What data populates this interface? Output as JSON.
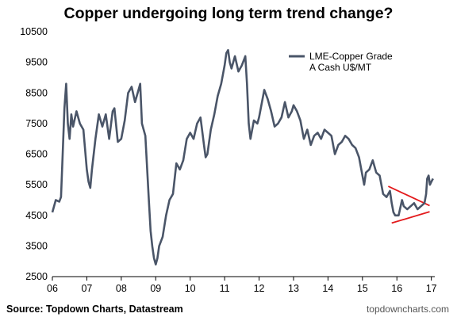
{
  "chart_data": {
    "type": "line",
    "title": "Copper undergoing long term trend change?",
    "xlabel": "",
    "ylabel": "",
    "xlim": [
      2006,
      2017.1
    ],
    "ylim": [
      2500,
      10500
    ],
    "x_ticks": [
      2006,
      2007,
      2008,
      2009,
      2010,
      2011,
      2012,
      2013,
      2014,
      2015,
      2016,
      2017
    ],
    "x_tick_labels": [
      "06",
      "07",
      "08",
      "09",
      "10",
      "11",
      "12",
      "13",
      "14",
      "15",
      "16",
      "17"
    ],
    "y_ticks": [
      2500,
      3500,
      4500,
      5500,
      6500,
      7500,
      8500,
      9500,
      10500
    ],
    "y_tick_labels": [
      "2500",
      "3500",
      "4500",
      "5500",
      "6500",
      "7500",
      "8500",
      "9500",
      "10500"
    ],
    "grid": false,
    "legend": {
      "placement": "top-right"
    },
    "series": [
      {
        "name": "LME-Copper Grade A Cash U$/MT",
        "legend_lines": [
          "LME-Copper Grade",
          "A Cash U$/MT"
        ],
        "color": "#4a5568",
        "points": [
          [
            2006.0,
            4600
          ],
          [
            2006.1,
            5000
          ],
          [
            2006.2,
            4950
          ],
          [
            2006.25,
            5100
          ],
          [
            2006.3,
            6500
          ],
          [
            2006.35,
            8000
          ],
          [
            2006.4,
            8800
          ],
          [
            2006.45,
            7500
          ],
          [
            2006.5,
            7000
          ],
          [
            2006.55,
            7800
          ],
          [
            2006.6,
            7400
          ],
          [
            2006.7,
            7900
          ],
          [
            2006.8,
            7500
          ],
          [
            2006.9,
            7300
          ],
          [
            2007.0,
            6000
          ],
          [
            2007.05,
            5600
          ],
          [
            2007.1,
            5400
          ],
          [
            2007.15,
            6000
          ],
          [
            2007.25,
            7000
          ],
          [
            2007.35,
            7800
          ],
          [
            2007.45,
            7400
          ],
          [
            2007.55,
            7800
          ],
          [
            2007.65,
            7000
          ],
          [
            2007.75,
            7900
          ],
          [
            2007.8,
            8000
          ],
          [
            2007.9,
            6900
          ],
          [
            2008.0,
            7000
          ],
          [
            2008.1,
            7600
          ],
          [
            2008.2,
            8500
          ],
          [
            2008.3,
            8700
          ],
          [
            2008.4,
            8200
          ],
          [
            2008.5,
            8600
          ],
          [
            2008.55,
            8800
          ],
          [
            2008.6,
            7500
          ],
          [
            2008.7,
            7100
          ],
          [
            2008.8,
            5000
          ],
          [
            2008.85,
            4000
          ],
          [
            2008.9,
            3500
          ],
          [
            2008.95,
            3100
          ],
          [
            2009.0,
            2900
          ],
          [
            2009.05,
            3100
          ],
          [
            2009.1,
            3500
          ],
          [
            2009.2,
            3800
          ],
          [
            2009.3,
            4500
          ],
          [
            2009.4,
            5000
          ],
          [
            2009.5,
            5200
          ],
          [
            2009.6,
            6200
          ],
          [
            2009.7,
            6000
          ],
          [
            2009.8,
            6300
          ],
          [
            2009.9,
            7000
          ],
          [
            2010.0,
            7200
          ],
          [
            2010.1,
            7000
          ],
          [
            2010.2,
            7500
          ],
          [
            2010.3,
            7700
          ],
          [
            2010.4,
            6800
          ],
          [
            2010.45,
            6400
          ],
          [
            2010.5,
            6500
          ],
          [
            2010.6,
            7300
          ],
          [
            2010.7,
            7800
          ],
          [
            2010.8,
            8400
          ],
          [
            2010.9,
            8800
          ],
          [
            2011.0,
            9400
          ],
          [
            2011.05,
            9800
          ],
          [
            2011.1,
            9900
          ],
          [
            2011.15,
            9500
          ],
          [
            2011.2,
            9300
          ],
          [
            2011.3,
            9700
          ],
          [
            2011.4,
            9200
          ],
          [
            2011.5,
            9400
          ],
          [
            2011.6,
            9700
          ],
          [
            2011.65,
            8800
          ],
          [
            2011.7,
            7500
          ],
          [
            2011.75,
            7000
          ],
          [
            2011.85,
            7600
          ],
          [
            2011.95,
            7500
          ],
          [
            2012.0,
            7700
          ],
          [
            2012.1,
            8300
          ],
          [
            2012.15,
            8600
          ],
          [
            2012.25,
            8300
          ],
          [
            2012.35,
            7900
          ],
          [
            2012.45,
            7400
          ],
          [
            2012.55,
            7500
          ],
          [
            2012.65,
            7700
          ],
          [
            2012.75,
            8200
          ],
          [
            2012.85,
            7700
          ],
          [
            2012.95,
            7900
          ],
          [
            2013.0,
            8100
          ],
          [
            2013.1,
            7900
          ],
          [
            2013.2,
            7600
          ],
          [
            2013.3,
            7000
          ],
          [
            2013.4,
            7300
          ],
          [
            2013.5,
            6800
          ],
          [
            2013.6,
            7100
          ],
          [
            2013.7,
            7200
          ],
          [
            2013.8,
            7000
          ],
          [
            2013.9,
            7300
          ],
          [
            2014.0,
            7200
          ],
          [
            2014.1,
            7100
          ],
          [
            2014.2,
            6500
          ],
          [
            2014.3,
            6800
          ],
          [
            2014.4,
            6900
          ],
          [
            2014.5,
            7100
          ],
          [
            2014.6,
            7000
          ],
          [
            2014.7,
            6800
          ],
          [
            2014.8,
            6700
          ],
          [
            2014.9,
            6400
          ],
          [
            2015.0,
            5800
          ],
          [
            2015.05,
            5500
          ],
          [
            2015.1,
            5900
          ],
          [
            2015.2,
            6000
          ],
          [
            2015.3,
            6300
          ],
          [
            2015.4,
            5900
          ],
          [
            2015.5,
            5800
          ],
          [
            2015.6,
            5200
          ],
          [
            2015.7,
            5100
          ],
          [
            2015.8,
            5300
          ],
          [
            2015.85,
            4900
          ],
          [
            2015.9,
            4600
          ],
          [
            2015.95,
            4500
          ],
          [
            2016.05,
            4500
          ],
          [
            2016.15,
            5000
          ],
          [
            2016.2,
            4800
          ],
          [
            2016.3,
            4700
          ],
          [
            2016.4,
            4800
          ],
          [
            2016.5,
            4900
          ],
          [
            2016.6,
            4700
          ],
          [
            2016.7,
            4800
          ],
          [
            2016.8,
            4900
          ],
          [
            2016.85,
            5200
          ],
          [
            2016.88,
            5700
          ],
          [
            2016.92,
            5800
          ],
          [
            2016.96,
            5500
          ],
          [
            2017.0,
            5600
          ],
          [
            2017.05,
            5700
          ]
        ]
      }
    ],
    "annotations": [
      {
        "type": "line",
        "color": "#e31a1c",
        "from": [
          2015.75,
          5450
        ],
        "to": [
          2016.95,
          4820
        ]
      },
      {
        "type": "line",
        "color": "#e31a1c",
        "from": [
          2015.85,
          4250
        ],
        "to": [
          2016.95,
          4620
        ]
      }
    ]
  },
  "source_note": "Source: Topdown Charts, Datastream",
  "site_credit": "topdowncharts.com"
}
